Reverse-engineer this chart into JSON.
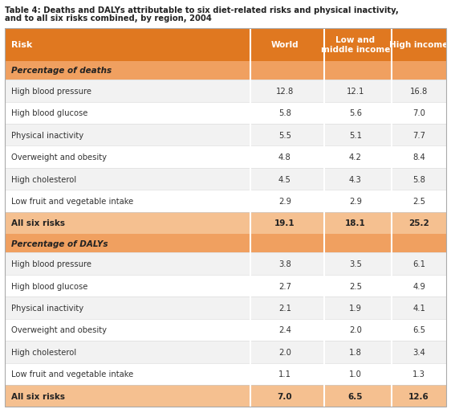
{
  "title_line1": "Table 4: Deaths and DALYs attributable to six diet-related risks and physical inactivity,",
  "title_line2": "and to all six risks combined, by region, 2004",
  "header": [
    "Risk",
    "World",
    "Low and\nmiddle income",
    "High income"
  ],
  "section1_label": "Percentage of deaths",
  "section1_rows": [
    [
      "High blood pressure",
      "12.8",
      "12.1",
      "16.8"
    ],
    [
      "High blood glucose",
      "5.8",
      "5.6",
      "7.0"
    ],
    [
      "Physical inactivity",
      "5.5",
      "5.1",
      "7.7"
    ],
    [
      "Overweight and obesity",
      "4.8",
      "4.2",
      "8.4"
    ],
    [
      "High cholesterol",
      "4.5",
      "4.3",
      "5.8"
    ],
    [
      "Low fruit and vegetable intake",
      "2.9",
      "2.9",
      "2.5"
    ]
  ],
  "section1_total": [
    "All six risks",
    "19.1",
    "18.1",
    "25.2"
  ],
  "section2_label": "Percentage of DALYs",
  "section2_rows": [
    [
      "High blood pressure",
      "3.8",
      "3.5",
      "6.1"
    ],
    [
      "High blood glucose",
      "2.7",
      "2.5",
      "4.9"
    ],
    [
      "Physical inactivity",
      "2.1",
      "1.9",
      "4.1"
    ],
    [
      "Overweight and obesity",
      "2.4",
      "2.0",
      "6.5"
    ],
    [
      "High cholesterol",
      "2.0",
      "1.8",
      "3.4"
    ],
    [
      "Low fruit and vegetable intake",
      "1.1",
      "1.0",
      "1.3"
    ]
  ],
  "section2_total": [
    "All six risks",
    "7.0",
    "6.5",
    "12.6"
  ],
  "color_header": "#E07820",
  "color_section_label": "#F0A060",
  "color_total_row": "#F5C090",
  "color_odd_row": "#F2F2F2",
  "color_even_row": "#FFFFFF",
  "color_border": "#CCCCCC",
  "color_title_text": "#222222",
  "color_header_text": "#FFFFFF",
  "color_section_text": "#222222",
  "color_total_text": "#222222",
  "color_data_text": "#333333",
  "bg_color": "#FFFFFF"
}
